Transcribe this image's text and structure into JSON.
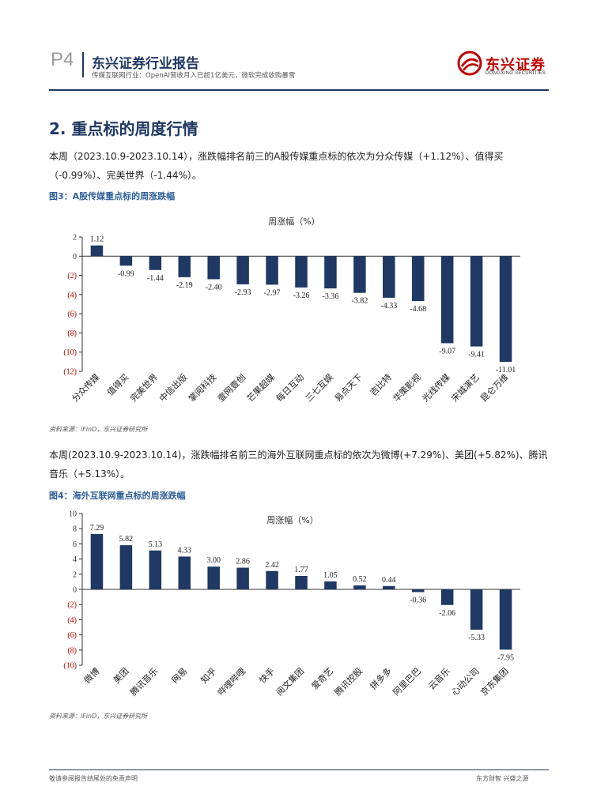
{
  "header": {
    "page_num": "P4",
    "report_title": "东兴证券行业报告",
    "report_subtitle": "传媒互联网行业：OpenAI营收月入已超1亿美元，微软完成收购暴雪",
    "logo_cn": "东兴证券",
    "logo_en": "DONGXING SECURITIES",
    "brand_color": "#c00000",
    "primary_color": "#1f3864"
  },
  "section": {
    "title": "2. 重点标的周度行情"
  },
  "paragraph1": "本周（2023.10.9-2023.10.14），涨跌幅排名前三的A股传媒重点标的依次为分众传媒（+1.12%）、值得买（-0.99%）、完美世界（-1.44%）。",
  "figure1": {
    "title": "图3：A股传媒重点标的周涨跌幅",
    "source": "资料来源：iFinD，东兴证券研究所"
  },
  "paragraph2": "本周(2023.10.9-2023.10.14)，涨跌幅排名前三的海外互联网重点标的依次为微博(+7.29%)、美团(+5.82%)、腾讯音乐（+5.13%）。",
  "figure2": {
    "title": "图4：海外互联网重点标的周涨跌幅",
    "source": "资料来源：iFinD，东兴证券研究所"
  },
  "chart_data": [
    {
      "type": "bar",
      "title": "周涨幅（%）",
      "categories": [
        "分众传媒",
        "值得买",
        "完美世界",
        "中信出版",
        "掌阅科技",
        "壹网壹创",
        "芒果超媒",
        "每日互动",
        "三七互娱",
        "易点天下",
        "吉比特",
        "华策影视",
        "光线传媒",
        "宋城演艺",
        "昆仑万维"
      ],
      "values": [
        1.12,
        -0.99,
        -1.44,
        -2.19,
        -2.4,
        -2.93,
        -2.97,
        -3.26,
        -3.36,
        -3.82,
        -4.33,
        -4.68,
        -9.07,
        -9.41,
        -11.01
      ],
      "value_labels": [
        "1.12",
        "-0.99",
        "-1.44",
        "-2.19",
        "-2.40",
        "-2.93",
        "-2.97",
        "-3.26",
        "-3.36",
        "-3.82",
        "-4.33",
        "-4.68",
        "-9.07",
        "-9.41",
        "-11.01"
      ],
      "yticks": [
        2,
        0,
        -2,
        -4,
        -6,
        -8,
        -10,
        -12
      ],
      "ytick_labels": [
        "2",
        "0",
        "(2)",
        "(4)",
        "(6)",
        "(8)",
        "(10)",
        "(12)"
      ],
      "ylim": [
        -12,
        2
      ],
      "bar_color": "#1f3864",
      "negative_tick_color": "#c00000",
      "grid": false,
      "legend": "none"
    },
    {
      "type": "bar",
      "title": "周涨幅（%）",
      "categories": [
        "微博",
        "美团",
        "腾讯音乐",
        "网易",
        "知乎",
        "哔哩哔哩",
        "快手",
        "阅文集团",
        "爱奇艺",
        "腾讯控股",
        "拼多多",
        "阿里巴巴",
        "云音乐",
        "心动公司",
        "京东集团"
      ],
      "values": [
        7.29,
        5.82,
        5.13,
        4.33,
        3.0,
        2.86,
        2.42,
        1.77,
        1.05,
        0.52,
        0.44,
        -0.36,
        -2.06,
        -5.33,
        -7.95
      ],
      "value_labels": [
        "7.29",
        "5.82",
        "5.13",
        "4.33",
        "3.00",
        "2.86",
        "2.42",
        "1.77",
        "1.05",
        "0.52",
        "0.44",
        "-0.36",
        "-2.06",
        "-5.33",
        "-7.95"
      ],
      "yticks": [
        10,
        8,
        6,
        4,
        2,
        0,
        -2,
        -4,
        -6,
        -8,
        -10
      ],
      "ytick_labels": [
        "10",
        "8",
        "6",
        "4",
        "2",
        "0",
        "(2)",
        "(4)",
        "(6)",
        "(8)",
        "(10)"
      ],
      "ylim": [
        -10,
        10
      ],
      "bar_color": "#1f3864",
      "negative_tick_color": "#c00000",
      "grid": false,
      "legend": "none"
    }
  ],
  "footer": {
    "left": "敬请参阅报告结尾处的免责声明",
    "right": "东方财智 兴盛之源"
  }
}
